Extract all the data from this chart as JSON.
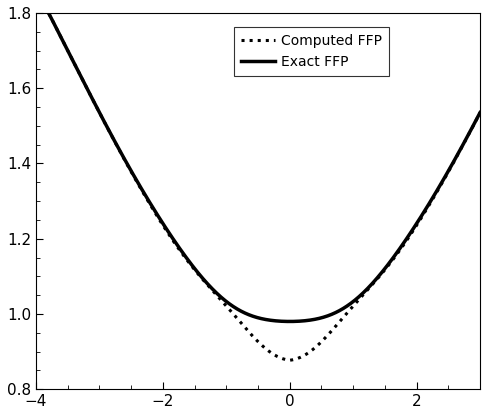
{
  "xlim": [
    -4,
    3
  ],
  "ylim": [
    0.8,
    1.8
  ],
  "xticks": [
    -4,
    -2,
    0,
    2
  ],
  "yticks": [
    0.8,
    1.0,
    1.2,
    1.4,
    1.6,
    1.8
  ],
  "legend_labels": [
    "Computed FFP",
    "Exact FFP"
  ],
  "exact_color": "#000000",
  "computed_color": "#000000",
  "background_color": "#ffffff",
  "figsize": [
    4.87,
    4.16
  ],
  "dpi": 100
}
